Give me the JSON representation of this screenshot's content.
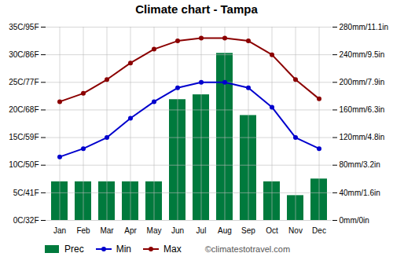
{
  "chart_data": {
    "type": "combo",
    "title": "Climate chart - Tampa",
    "categories": [
      "Jan",
      "Feb",
      "Mar",
      "Apr",
      "May",
      "Jun",
      "Jul",
      "Aug",
      "Sep",
      "Oct",
      "Nov",
      "Dec"
    ],
    "series": [
      {
        "name": "Prec",
        "type": "bar",
        "axis": "y2",
        "color": "#007A3D",
        "values": [
          56,
          56,
          56,
          56,
          56,
          175,
          182,
          242,
          152,
          56,
          36,
          60
        ]
      },
      {
        "name": "Min",
        "type": "line",
        "marker": "circle",
        "color": "#0000CD",
        "values": [
          11.5,
          13,
          15,
          18.5,
          21.5,
          24,
          25,
          25,
          24,
          20.5,
          15,
          13
        ]
      },
      {
        "name": "Max",
        "type": "line",
        "marker": "circle",
        "color": "#8B0000",
        "values": [
          21.5,
          23,
          25.5,
          28.5,
          31,
          32.5,
          33,
          33,
          32.5,
          30,
          25.5,
          22
        ]
      }
    ],
    "ylim": [
      0,
      35
    ],
    "yticks": [
      {
        "value": 0,
        "label": "0C/32F"
      },
      {
        "value": 5,
        "label": "5C/41F"
      },
      {
        "value": 10,
        "label": "10C/50F"
      },
      {
        "value": 15,
        "label": "15C/59F"
      },
      {
        "value": 20,
        "label": "20C/68F"
      },
      {
        "value": 25,
        "label": "25C/77F"
      },
      {
        "value": 30,
        "label": "30C/86F"
      },
      {
        "value": 35,
        "label": "35C/95F"
      }
    ],
    "y2lim": [
      0,
      280
    ],
    "y2ticks": [
      {
        "value": 0,
        "label": "0mm/0in"
      },
      {
        "value": 40,
        "label": "40mm/1.6in"
      },
      {
        "value": 80,
        "label": "80mm/3.2in"
      },
      {
        "value": 120,
        "label": "120mm/4.8in"
      },
      {
        "value": 160,
        "label": "160mm/6.3in"
      },
      {
        "value": 200,
        "label": "200mm/7.9in"
      },
      {
        "value": 240,
        "label": "240mm/9.5in"
      },
      {
        "value": 280,
        "label": "280mm/11.1in"
      }
    ],
    "grid": true,
    "legend": "bottom",
    "annotations": [
      "©climatestotravel.com"
    ]
  }
}
